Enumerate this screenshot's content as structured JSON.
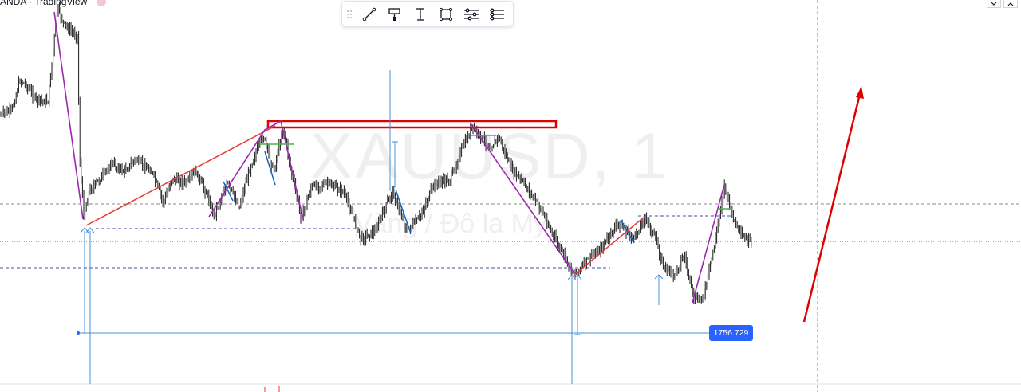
{
  "header": {
    "title": "ANDA · TradingView"
  },
  "watermark": {
    "symbol": "XAUUSD, 1",
    "description": "Vàng / Đô la Mỹ"
  },
  "toolbar": {
    "tools": [
      {
        "name": "drag-handle-icon"
      },
      {
        "name": "trend-line-icon"
      },
      {
        "name": "paint-roller-icon"
      },
      {
        "name": "text-cursor-icon"
      },
      {
        "name": "rectangle-icon"
      },
      {
        "name": "settings-sliders-icon"
      },
      {
        "name": "format-sliders-icon"
      }
    ]
  },
  "price_label": {
    "value": "1756.729",
    "color": "#2962ff"
  },
  "colors": {
    "candle": "#1a1a1a",
    "zigzag_purple": "#9c27b0",
    "trend_red": "#e53935",
    "resistance_box": "#e00000",
    "blue_measure": "#1565c0",
    "dashed_level": "#3f51b5",
    "green_line": "#4caf50",
    "big_arrow": "#e00000"
  }
}
